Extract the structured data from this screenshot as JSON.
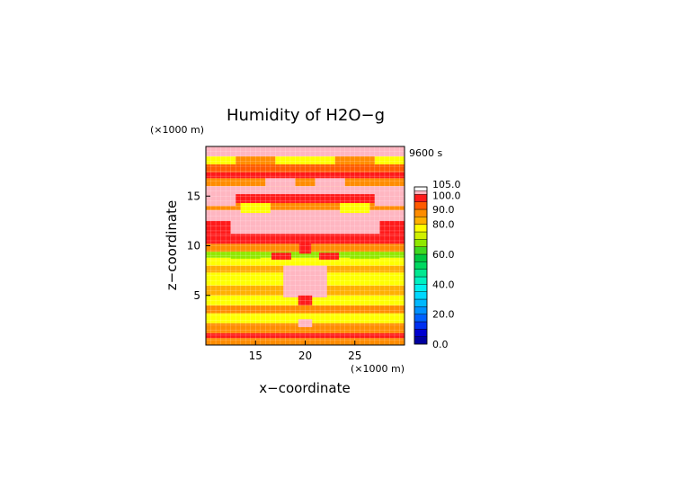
{
  "chart_data": {
    "type": "heatmap",
    "title": "Humidity of H2O−g",
    "time_label": "9600 s",
    "xlabel": "x−coordinate",
    "ylabel": "z−coordinate",
    "x_unit": "(×1000 m)",
    "y_unit": "(×1000 m)",
    "x_range": [
      10,
      30
    ],
    "y_range": [
      0,
      20
    ],
    "x_ticks": [
      15,
      20,
      25
    ],
    "y_ticks": [
      5,
      10,
      15
    ],
    "grid": true,
    "legend_placement": "right",
    "colorbar": {
      "ticks": [
        {
          "value": 0,
          "label": "0.0"
        },
        {
          "value": 20,
          "label": "20.0"
        },
        {
          "value": 40,
          "label": "40.0"
        },
        {
          "value": 60,
          "label": "60.0"
        },
        {
          "value": 80,
          "label": "80.0"
        },
        {
          "value": 90,
          "label": "90.0"
        },
        {
          "value": 100,
          "label": "100.0"
        },
        {
          "value": 105,
          "label": "105.0"
        }
      ],
      "levels": [
        {
          "from": 0,
          "to": 5,
          "color": "#0000a0"
        },
        {
          "from": 5,
          "to": 10,
          "color": "#0000d0"
        },
        {
          "from": 10,
          "to": 15,
          "color": "#0030f0"
        },
        {
          "from": 15,
          "to": 20,
          "color": "#0060ff"
        },
        {
          "from": 20,
          "to": 25,
          "color": "#0090ff"
        },
        {
          "from": 25,
          "to": 30,
          "color": "#00b8ff"
        },
        {
          "from": 30,
          "to": 35,
          "color": "#00d8ff"
        },
        {
          "from": 35,
          "to": 40,
          "color": "#00f0f0"
        },
        {
          "from": 40,
          "to": 45,
          "color": "#00f0c0"
        },
        {
          "from": 45,
          "to": 50,
          "color": "#00e890"
        },
        {
          "from": 50,
          "to": 55,
          "color": "#00d860"
        },
        {
          "from": 55,
          "to": 60,
          "color": "#00c840"
        },
        {
          "from": 60,
          "to": 65,
          "color": "#40d820"
        },
        {
          "from": 65,
          "to": 70,
          "color": "#90e800"
        },
        {
          "from": 70,
          "to": 75,
          "color": "#d0f000"
        },
        {
          "from": 75,
          "to": 80,
          "color": "#ffff00"
        },
        {
          "from": 80,
          "to": 85,
          "color": "#ffb000"
        },
        {
          "from": 85,
          "to": 90,
          "color": "#ff8c00"
        },
        {
          "from": 90,
          "to": 95,
          "color": "#ff5a00"
        },
        {
          "from": 95,
          "to": 100,
          "color": "#ff1a1a"
        },
        {
          "from": 100,
          "to": 102.5,
          "color": "#ffb6c1"
        },
        {
          "from": 102.5,
          "to": 105,
          "color": "#ffffff"
        }
      ]
    },
    "field_bands": [
      {
        "z": [
          0,
          0.7
        ],
        "value": 86
      },
      {
        "z": [
          0.7,
          1.2
        ],
        "value": 96
      },
      {
        "z": [
          1.2,
          2.2
        ],
        "value": 88
      },
      {
        "z": [
          2.2,
          3.2
        ],
        "value": 78
      },
      {
        "z": [
          3.2,
          4.0
        ],
        "value": 87
      },
      {
        "z": [
          4.0,
          5.0
        ],
        "value": 79
      },
      {
        "z": [
          5.0,
          6.0
        ],
        "value": 82
      },
      {
        "z": [
          6.0,
          7.3
        ],
        "value": 78
      },
      {
        "z": [
          7.3,
          8.0
        ],
        "value": 84
      },
      {
        "z": [
          8.0,
          8.8
        ],
        "value": 75
      },
      {
        "z": [
          8.8,
          9.4
        ],
        "value": 68
      },
      {
        "z": [
          9.4,
          10.2
        ],
        "value": 86
      },
      {
        "z": [
          10.2,
          11.2
        ],
        "value": 95
      },
      {
        "z": [
          11.2,
          13.6
        ],
        "value": 101
      },
      {
        "z": [
          13.6,
          14.3
        ],
        "value": 86
      },
      {
        "z": [
          14.3,
          15.2
        ],
        "value": 96
      },
      {
        "z": [
          15.2,
          16.0
        ],
        "value": 101
      },
      {
        "z": [
          16.0,
          16.8
        ],
        "value": 88
      },
      {
        "z": [
          16.8,
          17.4
        ],
        "value": 96
      },
      {
        "z": [
          17.4,
          18.2
        ],
        "value": 90
      },
      {
        "z": [
          18.2,
          19.0
        ],
        "value": 79
      },
      {
        "z": [
          19.0,
          20.0
        ],
        "value": 101
      }
    ],
    "field_patches": [
      {
        "x": [
          10,
          13
        ],
        "z": [
          14.0,
          15.3
        ],
        "value": 101
      },
      {
        "x": [
          27,
          30
        ],
        "z": [
          14.0,
          15.3
        ],
        "value": 101
      },
      {
        "x": [
          13.5,
          16.5
        ],
        "z": [
          13.3,
          14.3
        ],
        "value": 79
      },
      {
        "x": [
          23.5,
          26.5
        ],
        "z": [
          13.3,
          14.3
        ],
        "value": 79
      },
      {
        "x": [
          17.8,
          22.2
        ],
        "z": [
          4.8,
          8.0
        ],
        "value": 101
      },
      {
        "x": [
          16.6,
          18.6
        ],
        "z": [
          8.6,
          9.3
        ],
        "value": 96
      },
      {
        "x": [
          21.4,
          23.4
        ],
        "z": [
          8.6,
          9.3
        ],
        "value": 96
      },
      {
        "x": [
          12.5,
          15.5
        ],
        "z": [
          8.7,
          9.4
        ],
        "value": 68
      },
      {
        "x": [
          24.5,
          27.5
        ],
        "z": [
          8.7,
          9.4
        ],
        "value": 68
      },
      {
        "x": [
          19.4,
          20.6
        ],
        "z": [
          9.2,
          10.5
        ],
        "value": 97
      },
      {
        "x": [
          19.3,
          20.7
        ],
        "z": [
          4.0,
          5.0
        ],
        "value": 96
      },
      {
        "x": [
          19.3,
          20.7
        ],
        "z": [
          1.8,
          2.6
        ],
        "value": 101
      },
      {
        "x": [
          13.0,
          17.0
        ],
        "z": [
          18.2,
          19.0
        ],
        "value": 86
      },
      {
        "x": [
          23.0,
          27.0
        ],
        "z": [
          18.2,
          19.0
        ],
        "value": 86
      },
      {
        "x": [
          10,
          12.5
        ],
        "z": [
          11.2,
          12.5
        ],
        "value": 96
      },
      {
        "x": [
          27.5,
          30
        ],
        "z": [
          11.2,
          12.5
        ],
        "value": 96
      },
      {
        "x": [
          16.0,
          19.0
        ],
        "z": [
          16.0,
          16.8
        ],
        "value": 101
      },
      {
        "x": [
          21.0,
          24.0
        ],
        "z": [
          16.0,
          16.8
        ],
        "value": 101
      }
    ]
  }
}
